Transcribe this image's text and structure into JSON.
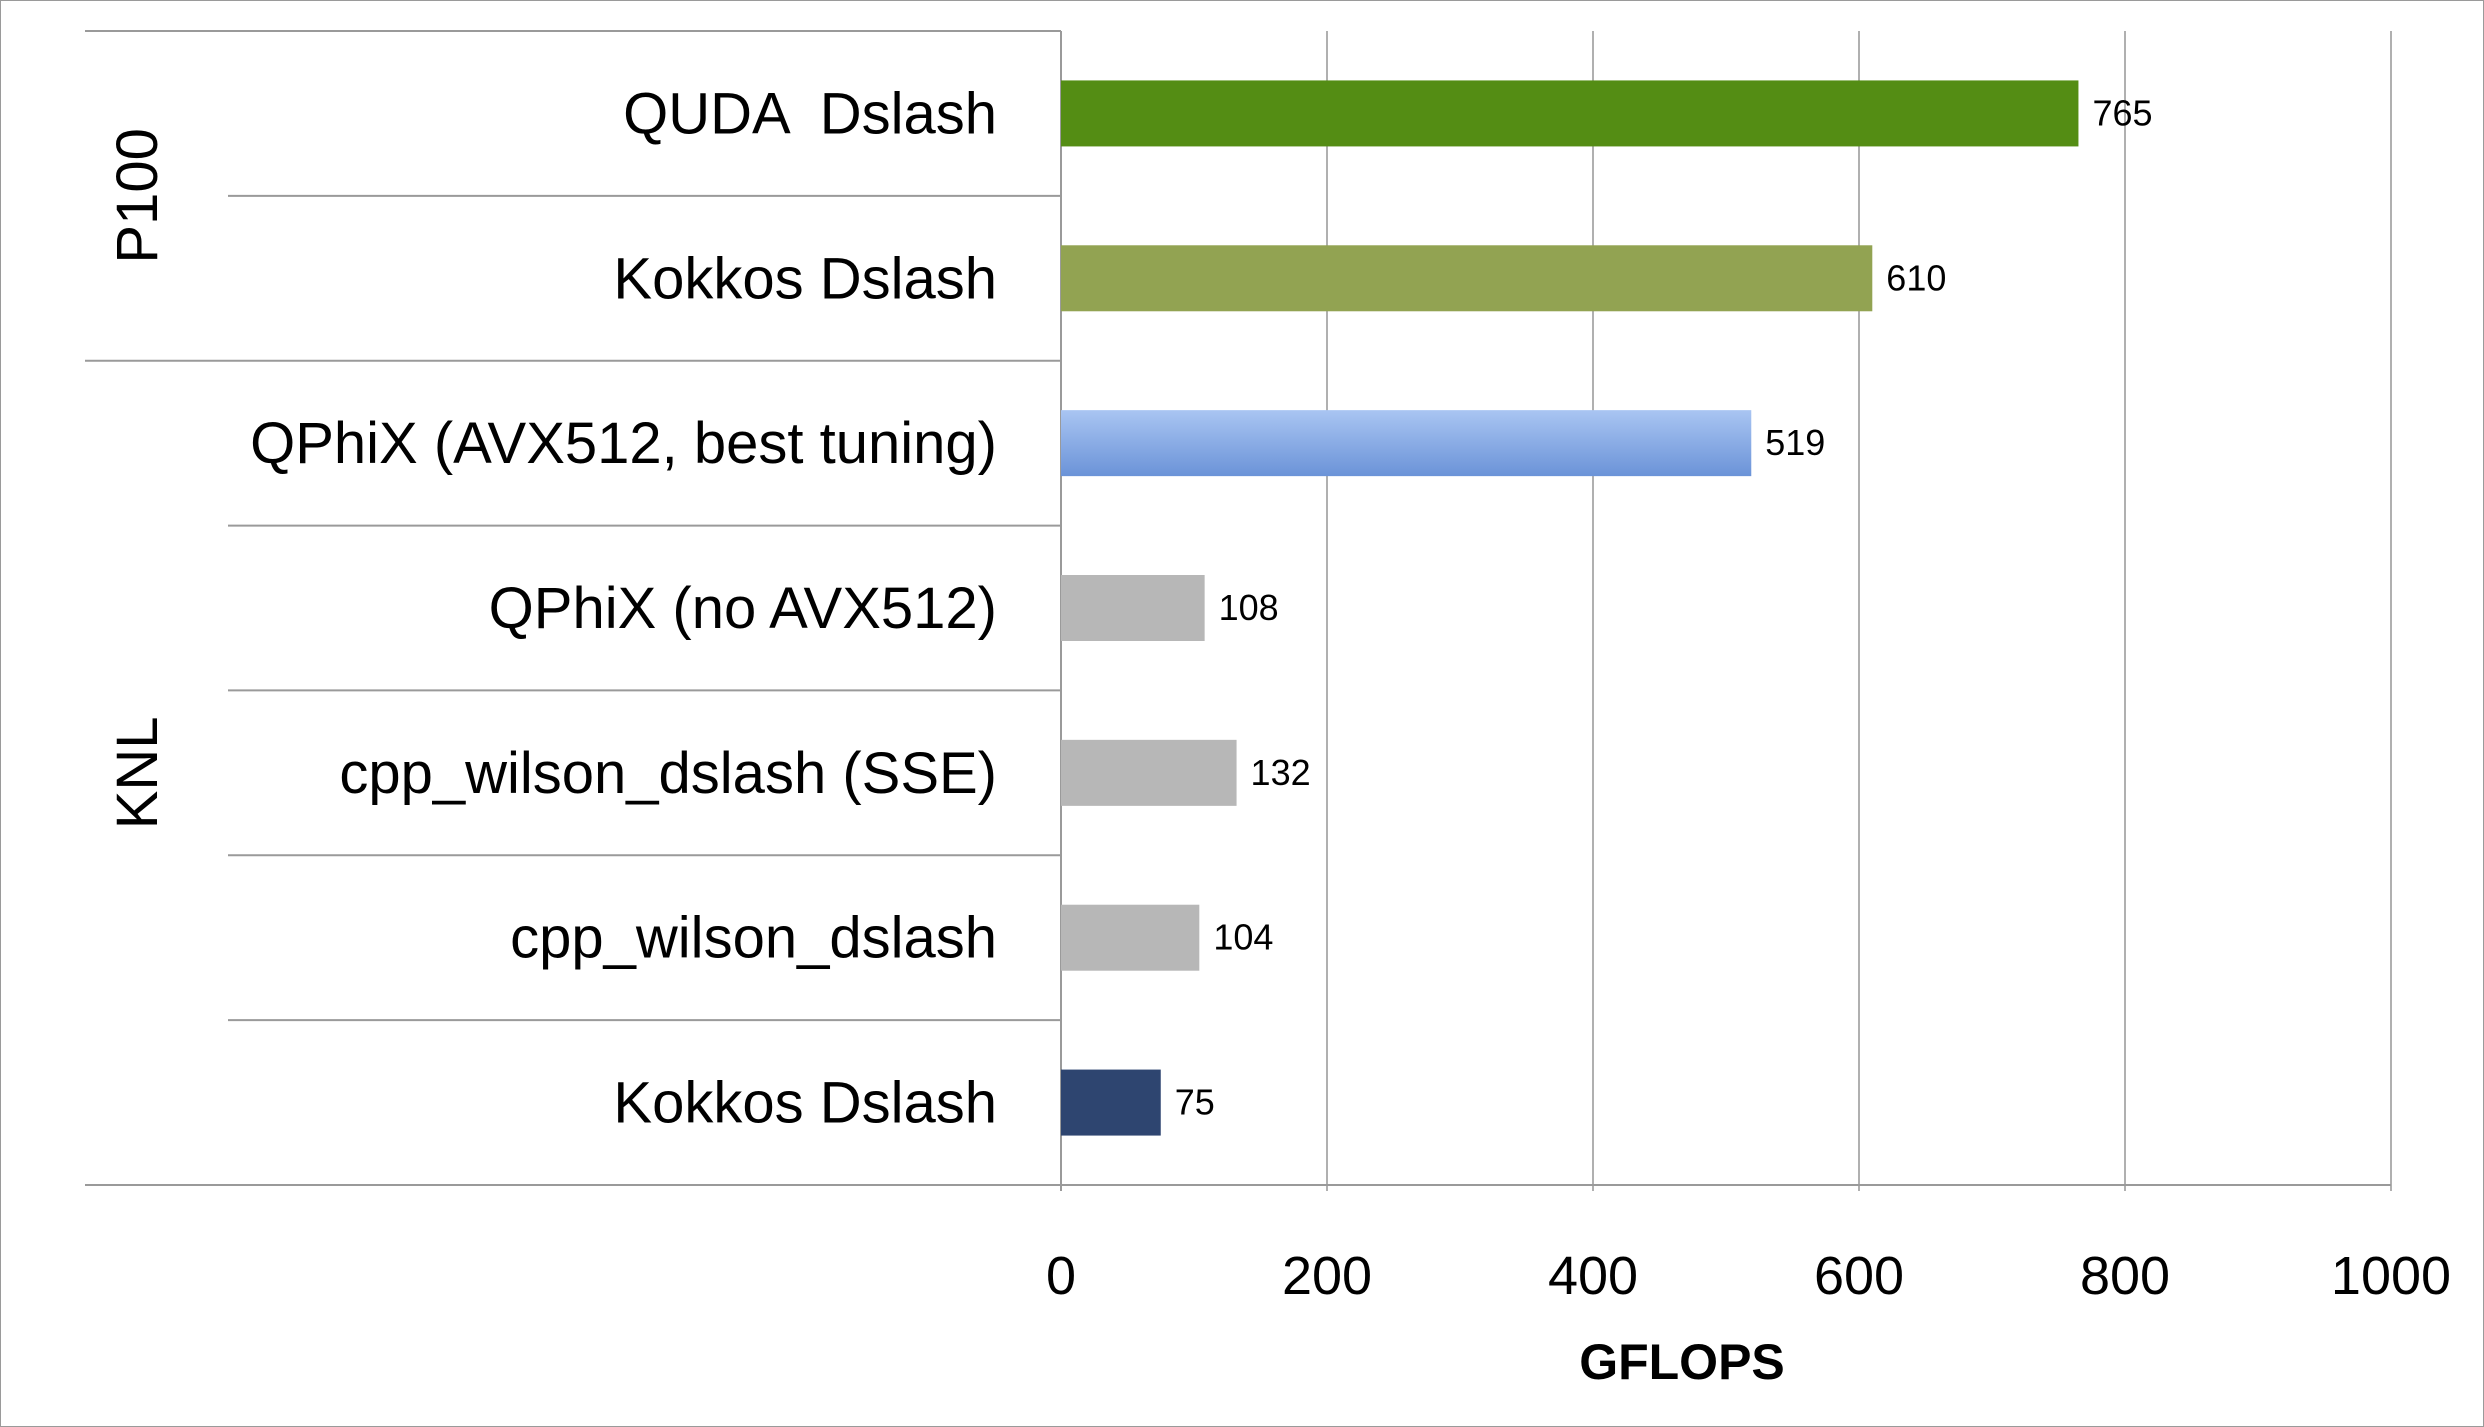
{
  "chart_data": {
    "type": "bar",
    "orientation": "horizontal",
    "title": "",
    "xlabel": "GFLOPS",
    "ylabel": "",
    "xlim": [
      0,
      1000
    ],
    "x_ticks": [
      0,
      200,
      400,
      600,
      800,
      1000
    ],
    "grid": "vertical gridlines on",
    "legend": "none",
    "groups": [
      {
        "name": "P100",
        "bars": [
          {
            "label": "QUDA  Dslash",
            "value": 765,
            "color": "#548d14"
          },
          {
            "label": "Kokkos Dslash",
            "value": 610,
            "color": "#92a352"
          }
        ]
      },
      {
        "name": "KNL",
        "bars": [
          {
            "label": "QPhiX (AVX512, best tuning)",
            "value": 519,
            "color": "#8aaee6"
          },
          {
            "label": "QPhiX (no AVX512)",
            "value": 108,
            "color": "#b7b7b7"
          },
          {
            "label": "cpp_wilson_dslash (SSE)",
            "value": 132,
            "color": "#b7b7b7"
          },
          {
            "label": "cpp_wilson_dslash",
            "value": 104,
            "color": "#b7b7b7"
          },
          {
            "label": "Kokkos Dslash",
            "value": 75,
            "color": "#2e4570"
          }
        ]
      }
    ]
  }
}
